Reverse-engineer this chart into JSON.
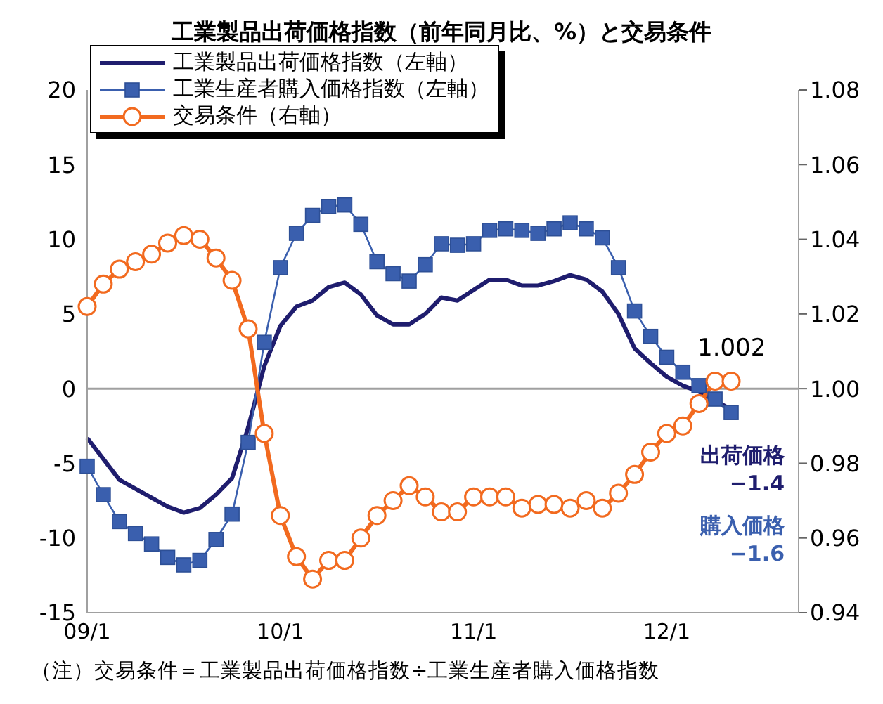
{
  "chart_data": {
    "type": "line",
    "title": "工業製品出荷価格指数（前年同月比、%）と交易条件",
    "categories": [
      "09/1",
      null,
      null,
      null,
      null,
      null,
      null,
      null,
      null,
      null,
      null,
      null,
      "10/1",
      null,
      null,
      null,
      null,
      null,
      null,
      null,
      null,
      null,
      null,
      null,
      "11/1",
      null,
      null,
      null,
      null,
      null,
      null,
      null,
      null,
      null,
      null,
      null,
      "12/1",
      null,
      null,
      null,
      null
    ],
    "series": [
      {
        "name": "工業製品出荷価格指数（左軸）",
        "color": "#1f1d6e",
        "marker": "none",
        "values": [
          -3.3,
          -4.7,
          -6.1,
          -6.7,
          -7.3,
          -7.9,
          -8.3,
          -8.0,
          -7.1,
          -6.0,
          -2.6,
          1.5,
          4.2,
          5.5,
          5.9,
          6.8,
          7.1,
          6.3,
          4.9,
          4.3,
          4.3,
          5.0,
          6.1,
          5.9,
          6.6,
          7.3,
          7.3,
          6.9,
          6.9,
          7.2,
          7.6,
          7.3,
          6.5,
          5.0,
          2.7,
          1.7,
          0.8,
          0.2,
          -0.2,
          -0.8,
          -1.4
        ]
      },
      {
        "name": "工業生産者購入価格指数（左軸）",
        "color": "#3a5fae",
        "marker": "square",
        "values": [
          -5.2,
          -7.1,
          -8.9,
          -9.7,
          -10.4,
          -11.3,
          -11.8,
          -11.5,
          -10.1,
          -8.4,
          -3.6,
          3.1,
          8.1,
          10.4,
          11.6,
          12.2,
          12.3,
          11.0,
          8.5,
          7.7,
          7.2,
          8.3,
          9.7,
          9.6,
          9.7,
          10.6,
          10.7,
          10.6,
          10.4,
          10.7,
          11.1,
          10.7,
          10.1,
          8.1,
          5.2,
          3.5,
          2.1,
          1.1,
          0.2,
          -0.7,
          -1.6
        ]
      },
      {
        "name": "交易条件（右軸）",
        "color": "#f26a1f",
        "marker": "circle",
        "axis": "y2",
        "values": [
          1.022,
          1.028,
          1.032,
          1.034,
          1.036,
          1.039,
          1.041,
          1.04,
          1.035,
          1.029,
          1.016,
          0.988,
          0.966,
          0.955,
          0.949,
          0.954,
          0.954,
          0.96,
          0.966,
          0.97,
          0.974,
          0.971,
          0.967,
          0.967,
          0.971,
          0.971,
          0.971,
          0.968,
          0.969,
          0.969,
          0.968,
          0.97,
          0.968,
          0.972,
          0.977,
          0.983,
          0.988,
          0.99,
          0.996,
          1.002,
          1.002
        ]
      }
    ],
    "ylim": [
      -15,
      20
    ],
    "yticks": [
      -15,
      -10,
      -5,
      0,
      5,
      10,
      15,
      20
    ],
    "y2lim": [
      0.94,
      1.08
    ],
    "y2ticks": [
      0.94,
      0.96,
      0.98,
      {
        "value": 1,
        "label": "1.00"
      },
      1.02,
      1.04,
      1.06,
      1.08
    ],
    "ref_lines": [
      {
        "axis": "y",
        "value": 0,
        "color": "#a0a0a0"
      }
    ],
    "legend": "top left",
    "annotations": [
      "1.002",
      "出荷価格\n−1.4",
      "購入価格\n−1.6",
      "（注）交易条件＝工業製品出荷価格指数÷工業生産者購入価格指数"
    ]
  }
}
